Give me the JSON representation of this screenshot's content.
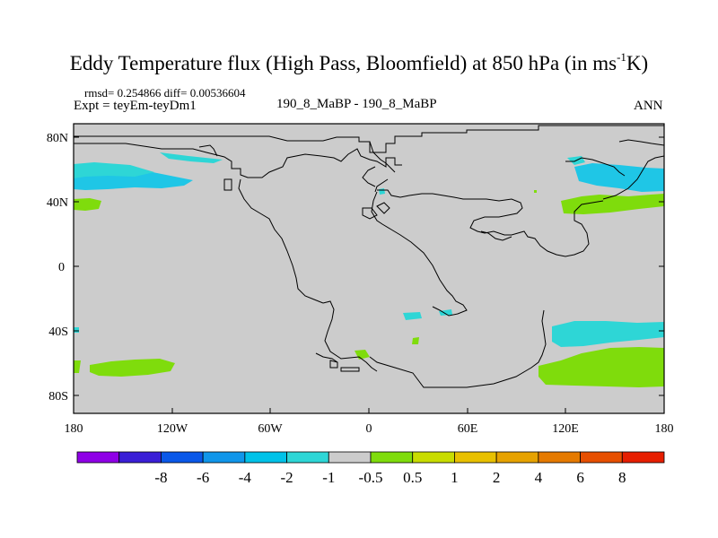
{
  "title": {
    "main": "Eddy Temperature flux (High Pass, Bloomfield) at 850 hPa (in ms",
    "sup": "-1",
    "end": "K)"
  },
  "stats": "rmsd= 0.254866 diff= 0.00536604",
  "expt": "Expt = teyEm-teyDm1",
  "center_label": "190_8_MaBP - 190_8_MaBP",
  "season": "ANN",
  "lat_ticks": [
    "80N",
    "40N",
    "0",
    "40S",
    "80S"
  ],
  "lon_ticks": [
    "180",
    "120W",
    "60W",
    "0",
    "60E",
    "120E",
    "180"
  ],
  "colorbar": {
    "colors": [
      "#8f00e6",
      "#3a1fd6",
      "#0a58e8",
      "#1096ea",
      "#00c2e8",
      "#2ed6d6",
      "#cccccc",
      "#7fdc0c",
      "#c8dc00",
      "#e8c000",
      "#e6a200",
      "#e57a00",
      "#e64f00",
      "#e61e00"
    ],
    "labels": [
      "-8",
      "-6",
      "-4",
      "-2",
      "-1",
      "-0.5",
      "0.5",
      "1",
      "2",
      "4",
      "6",
      "8"
    ]
  },
  "colors": {
    "land_sea_bg": "#cccccc",
    "blue_anomaly": "#1fc6e6",
    "cyan_anomaly": "#2ed6d6",
    "green_anomaly": "#7fdc0c"
  }
}
